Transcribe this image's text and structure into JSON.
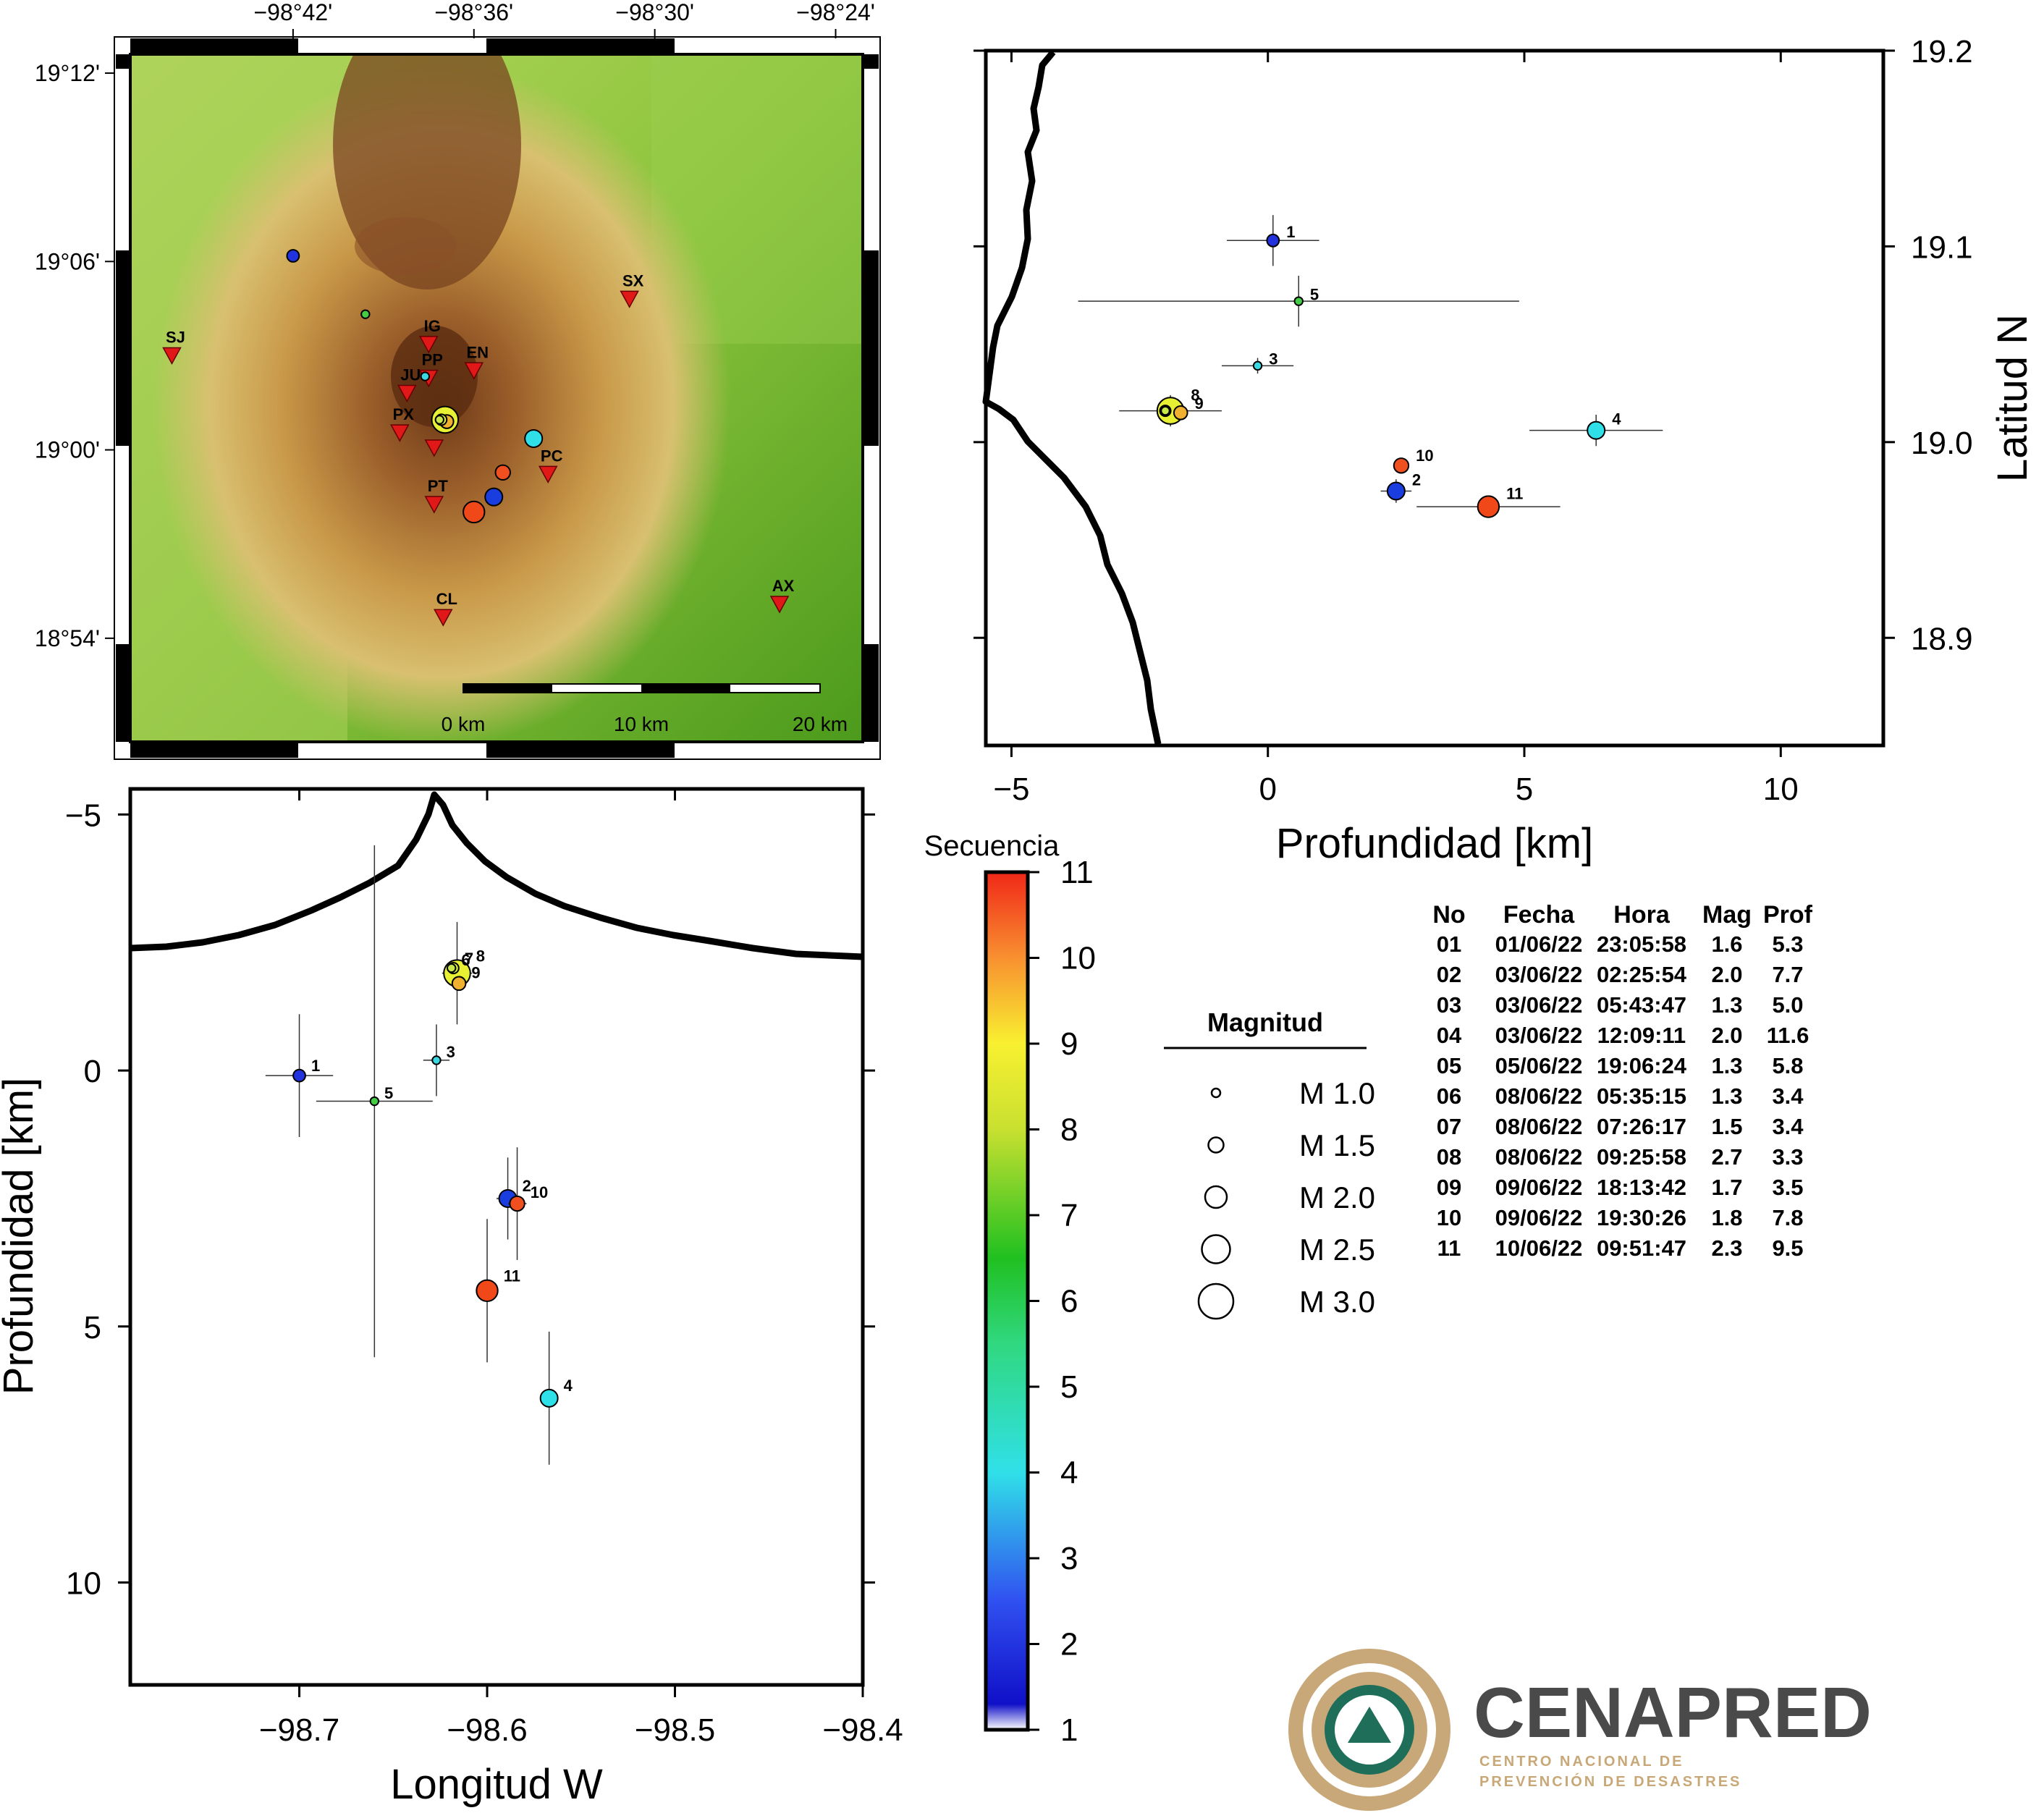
{
  "map": {
    "top_ticks": [
      "−98°42'",
      "−98°36'",
      "−98°30'",
      "−98°24'"
    ],
    "left_ticks": [
      "19°12'",
      "19°06'",
      "19°00'",
      "18°54'"
    ],
    "scalebar": [
      "0 km",
      "10 km",
      "20 km"
    ],
    "stations": [
      {
        "code": "SJ",
        "lon": -98.767,
        "lat": 19.05
      },
      {
        "code": "IG",
        "lon": -98.625,
        "lat": 19.056
      },
      {
        "code": "JU",
        "lon": -98.637,
        "lat": 19.03
      },
      {
        "code": "PP",
        "lon": -98.625,
        "lat": 19.038
      },
      {
        "code": "EN",
        "lon": -98.6,
        "lat": 19.042
      },
      {
        "code": "SX",
        "lon": -98.514,
        "lat": 19.08
      },
      {
        "code": "PX",
        "lon": -98.641,
        "lat": 19.009
      },
      {
        "code": "PC",
        "lon": -98.559,
        "lat": 18.987
      },
      {
        "code": "PT",
        "lon": -98.622,
        "lat": 18.971
      },
      {
        "code": "CL",
        "lon": -98.617,
        "lat": 18.911
      },
      {
        "code": "AX",
        "lon": -98.431,
        "lat": 18.918
      }
    ],
    "volcano_marker_lon": -98.622,
    "volcano_marker_lat": 19.001
  },
  "section_lat": {
    "xlabel": "Profundidad [km]",
    "ylabel": "Latitud N",
    "x_ticks": [
      "−5",
      "0",
      "5",
      "10"
    ],
    "y_ticks": [
      "19.2",
      "19.1",
      "19.0",
      "18.9"
    ]
  },
  "section_lon": {
    "xlabel": "Longitud W",
    "ylabel": "Profundidad [km]",
    "x_ticks": [
      "−98.7",
      "−98.6",
      "−98.5",
      "−98.4"
    ],
    "y_ticks": [
      "−5",
      "0",
      "5",
      "10"
    ]
  },
  "colorbar": {
    "title": "Secuencia",
    "ticks": [
      "1",
      "2",
      "3",
      "4",
      "5",
      "6",
      "7",
      "8",
      "9",
      "10",
      "11"
    ]
  },
  "magnitude_legend": {
    "title": "Magnitud",
    "items": [
      {
        "label": "M 1.0",
        "mag": 1.0
      },
      {
        "label": "M 1.5",
        "mag": 1.5
      },
      {
        "label": "M 2.0",
        "mag": 2.0
      },
      {
        "label": "M 2.5",
        "mag": 2.5
      },
      {
        "label": "M 3.0",
        "mag": 3.0
      }
    ]
  },
  "event_table": {
    "headers": [
      "No",
      "Fecha",
      "Hora",
      "Mag",
      "Prof"
    ],
    "rows": [
      [
        "01",
        "01/06/22",
        "23:05:58",
        "1.6",
        "5.3"
      ],
      [
        "02",
        "03/06/22",
        "02:25:54",
        "2.0",
        "7.7"
      ],
      [
        "03",
        "03/06/22",
        "05:43:47",
        "1.3",
        "5.0"
      ],
      [
        "04",
        "03/06/22",
        "12:09:11",
        "2.0",
        "11.6"
      ],
      [
        "05",
        "05/06/22",
        "19:06:24",
        "1.3",
        "5.8"
      ],
      [
        "06",
        "08/06/22",
        "05:35:15",
        "1.3",
        "3.4"
      ],
      [
        "07",
        "08/06/22",
        "07:26:17",
        "1.5",
        "3.4"
      ],
      [
        "08",
        "08/06/22",
        "09:25:58",
        "2.7",
        "3.3"
      ],
      [
        "09",
        "09/06/22",
        "18:13:42",
        "1.7",
        "3.5"
      ],
      [
        "10",
        "09/06/22",
        "19:30:26",
        "1.8",
        "7.8"
      ],
      [
        "11",
        "10/06/22",
        "09:51:47",
        "2.3",
        "9.5"
      ]
    ]
  },
  "logo": {
    "name": "CENAPRED",
    "line1": "CENTRO NACIONAL DE",
    "line2": "PREVENCIÓN DE DESASTRES"
  },
  "chart_data": {
    "type": "scatter",
    "events": [
      {
        "n": 1,
        "lon": -98.7,
        "lat": 19.103,
        "depth": 0.1,
        "mag": 1.6,
        "color": "#2233dd"
      },
      {
        "n": 2,
        "lon": -98.589,
        "lat": 18.975,
        "depth": 2.5,
        "mag": 2.0,
        "color": "#1a3de0"
      },
      {
        "n": 3,
        "lon": -98.627,
        "lat": 19.039,
        "depth": -0.2,
        "mag": 1.3,
        "color": "#3ad8e0"
      },
      {
        "n": 4,
        "lon": -98.567,
        "lat": 19.006,
        "depth": 6.4,
        "mag": 2.0,
        "color": "#2fe0e8"
      },
      {
        "n": 5,
        "lon": -98.66,
        "lat": 19.072,
        "depth": 0.6,
        "mag": 1.3,
        "color": "#44cc44"
      },
      {
        "n": 6,
        "lon": -98.619,
        "lat": 19.016,
        "depth": -2.0,
        "mag": 1.3,
        "color": "#c8e84a"
      },
      {
        "n": 7,
        "lon": -98.618,
        "lat": 19.016,
        "depth": -2.0,
        "mag": 1.5,
        "color": "#d8ec3c"
      },
      {
        "n": 8,
        "lon": -98.616,
        "lat": 19.016,
        "depth": -1.9,
        "mag": 2.7,
        "color": "#e8f034"
      },
      {
        "n": 9,
        "lon": -98.615,
        "lat": 19.015,
        "depth": -1.7,
        "mag": 1.7,
        "color": "#f0b030"
      },
      {
        "n": 10,
        "lon": -98.584,
        "lat": 18.988,
        "depth": 2.6,
        "mag": 1.8,
        "color": "#f05020"
      },
      {
        "n": 11,
        "lon": -98.6,
        "lat": 18.967,
        "depth": 4.3,
        "mag": 2.3,
        "color": "#f04818"
      }
    ],
    "map_xlim": [
      -98.79,
      -98.385
    ],
    "map_ylim": [
      18.845,
      19.21
    ],
    "depth_lim_lat_section": [
      -5.5,
      12
    ],
    "lat_lim_lat_section": [
      18.845,
      19.2
    ],
    "lon_lim_lon_section": [
      -98.79,
      -98.4
    ],
    "depth_lim_lon_section": [
      -5.5,
      12
    ]
  }
}
